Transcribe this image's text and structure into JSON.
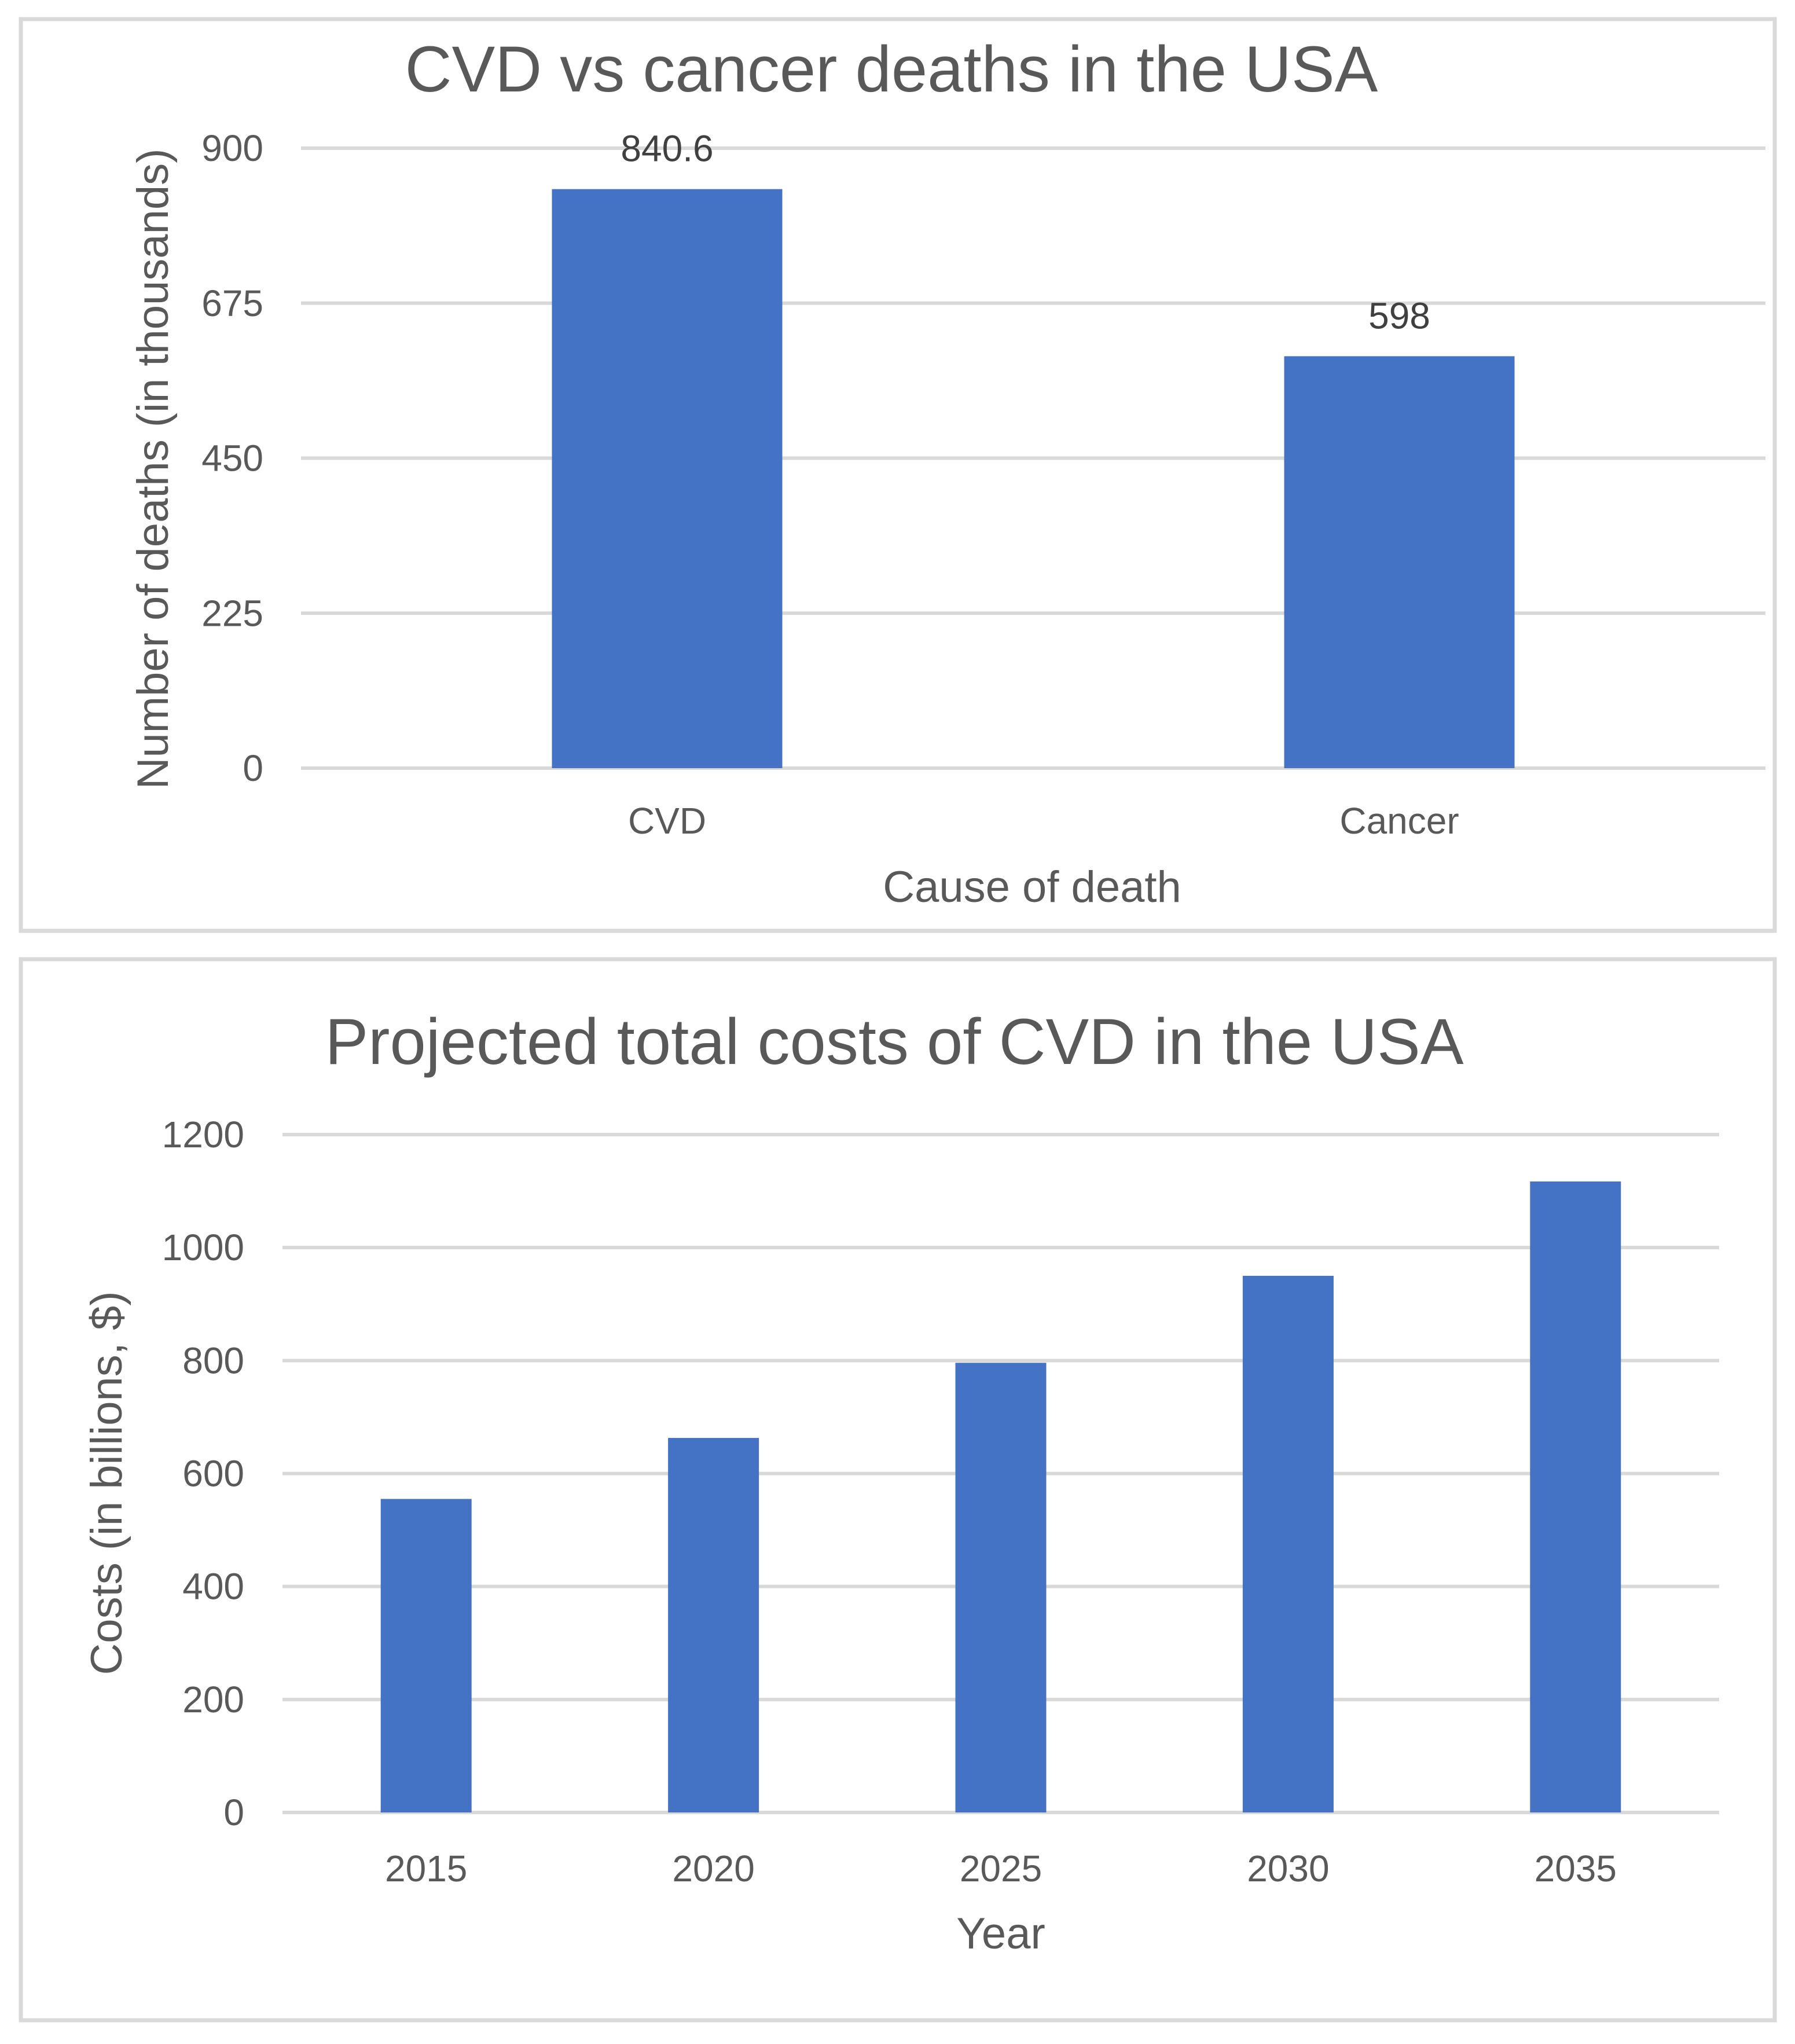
{
  "chart_data": [
    {
      "type": "bar",
      "title": "CVD vs cancer deaths in the USA",
      "xlabel": "Cause of death",
      "ylabel": "Number of deaths (in thousands)",
      "categories": [
        "CVD",
        "Cancer"
      ],
      "values": [
        840.6,
        598
      ],
      "data_labels": [
        "840.6",
        "598"
      ],
      "ylim": [
        0,
        900
      ],
      "yticks": [
        0,
        225,
        450,
        675,
        900
      ],
      "ytick_labels": [
        "0",
        "225",
        "450",
        "675",
        "900"
      ],
      "grid": true,
      "color": "#4472c4"
    },
    {
      "type": "bar",
      "title": "Projected total costs of CVD in the USA",
      "xlabel": "Year",
      "ylabel": "Costs (in billions, $)",
      "categories": [
        "2015",
        "2020",
        "2025",
        "2030",
        "2035"
      ],
      "values": [
        555,
        663,
        796,
        950,
        1117
      ],
      "ylim": [
        0,
        1200
      ],
      "yticks": [
        0,
        200,
        400,
        600,
        800,
        1000,
        1200
      ],
      "ytick_labels": [
        "0",
        "200",
        "400",
        "600",
        "800",
        "1000",
        "1200"
      ],
      "grid": true,
      "color": "#4472c4"
    }
  ]
}
